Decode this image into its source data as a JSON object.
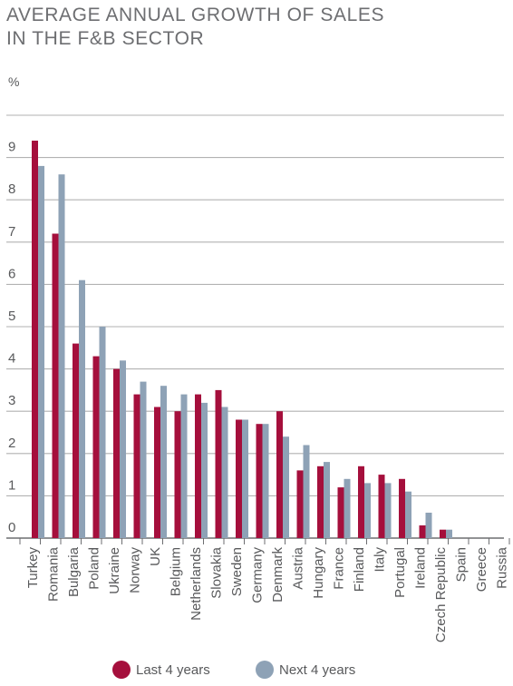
{
  "title_line1": "AVERAGE ANNUAL GROWTH OF SALES",
  "title_line2": "IN THE F&B SECTOR",
  "unit_label": "%",
  "colors": {
    "series1": "#a50f3c",
    "series2": "#8ea2b6",
    "grid": "#b2b2b2",
    "axis": "#6d6e71"
  },
  "chart_data": {
    "type": "bar",
    "title": "AVERAGE ANNUAL GROWTH OF SALES IN THE F&B SECTOR",
    "ylabel": "%",
    "xlabel": "",
    "ylim": [
      0,
      10
    ],
    "yticks": [
      0,
      1,
      2,
      3,
      4,
      5,
      6,
      7,
      8,
      9
    ],
    "grid": true,
    "legend_position": "bottom",
    "categories": [
      "Turkey",
      "Romania",
      "Bulgaria",
      "Poland",
      "Ukraine",
      "Norway",
      "UK",
      "Belgium",
      "Netherlands",
      "Slovakia",
      "Sweden",
      "Germany",
      "Denmark",
      "Austria",
      "Hungary",
      "France",
      "Finland",
      "Italy",
      "Portugal",
      "Ireland",
      "Czech Republic",
      "Spain",
      "Greece",
      "Russia"
    ],
    "series": [
      {
        "name": "Last 4 years",
        "values": [
          9.4,
          7.2,
          4.6,
          4.3,
          4.0,
          3.4,
          3.1,
          3.0,
          3.4,
          3.5,
          2.8,
          2.7,
          3.0,
          1.6,
          1.7,
          1.2,
          1.7,
          1.5,
          1.4,
          0.3,
          0.2,
          0,
          0,
          0
        ]
      },
      {
        "name": "Next 4 years",
        "values": [
          8.8,
          8.6,
          6.1,
          5.0,
          4.2,
          3.7,
          3.6,
          3.4,
          3.2,
          3.1,
          2.8,
          2.7,
          2.4,
          2.2,
          1.8,
          1.4,
          1.3,
          1.3,
          1.1,
          0.6,
          0.2,
          0,
          0,
          0
        ]
      }
    ]
  },
  "legend": [
    {
      "label": "Last 4 years"
    },
    {
      "label": "Next 4 years"
    }
  ]
}
